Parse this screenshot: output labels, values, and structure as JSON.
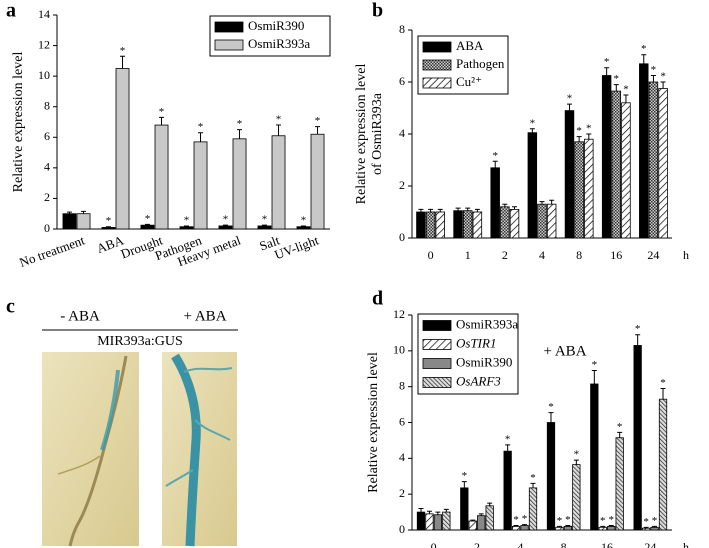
{
  "chart_data": [
    {
      "type": "bar",
      "panel": "a",
      "ylabel": "Relative expression level",
      "categories": [
        "No treatment",
        "ABA",
        "Drought",
        "Pathogen",
        "Heavy metal",
        "Salt",
        "UV-light"
      ],
      "ylim": [
        0,
        14
      ],
      "yticks": [
        0,
        2,
        4,
        6,
        8,
        10,
        12,
        14
      ],
      "legend": "upper right",
      "series": [
        {
          "name": "OsmiR390",
          "color": "#000000",
          "values": [
            1.0,
            0.1,
            0.25,
            0.15,
            0.2,
            0.2,
            0.15
          ],
          "errors": [
            0.1,
            0.05,
            0.05,
            0.05,
            0.05,
            0.05,
            0.05
          ],
          "significance": [
            null,
            "*",
            "*",
            "*",
            "*",
            "*",
            "*"
          ]
        },
        {
          "name": "OsmiR393a",
          "color": "#c8c8c8",
          "values": [
            1.0,
            10.5,
            6.8,
            5.7,
            5.9,
            6.1,
            6.2
          ],
          "errors": [
            0.15,
            0.8,
            0.5,
            0.6,
            0.6,
            0.7,
            0.5
          ],
          "significance": [
            null,
            "*",
            "*",
            "*",
            "*",
            "*",
            "*"
          ]
        }
      ]
    },
    {
      "type": "bar",
      "panel": "b",
      "ylabel": [
        "Relative expression level",
        "of OsmiR393a"
      ],
      "xlabel": "h",
      "categories": [
        "0",
        "1",
        "2",
        "4",
        "8",
        "16",
        "24"
      ],
      "ylim": [
        0,
        8
      ],
      "yticks": [
        0,
        2,
        4,
        6,
        8
      ],
      "legend": "upper left",
      "series": [
        {
          "name": "ABA",
          "color": "#000000",
          "values": [
            1.0,
            1.05,
            2.7,
            4.05,
            4.9,
            6.25,
            6.7
          ],
          "errors": [
            0.1,
            0.1,
            0.25,
            0.15,
            0.25,
            0.3,
            0.35
          ],
          "significance": [
            null,
            null,
            "*",
            "*",
            "*",
            "*",
            "*"
          ]
        },
        {
          "name": "Pathogen",
          "pattern": "checker",
          "values": [
            1.0,
            1.05,
            1.2,
            1.3,
            3.7,
            5.65,
            6.0
          ],
          "errors": [
            0.1,
            0.1,
            0.1,
            0.1,
            0.2,
            0.25,
            0.25
          ],
          "significance": [
            null,
            null,
            null,
            null,
            "*",
            "*",
            "*"
          ]
        },
        {
          "name": "Cu²⁺",
          "pattern": "hatch",
          "values": [
            1.0,
            1.0,
            1.1,
            1.3,
            3.8,
            5.2,
            5.75
          ],
          "errors": [
            0.1,
            0.1,
            0.1,
            0.15,
            0.2,
            0.3,
            0.25
          ],
          "significance": [
            null,
            null,
            null,
            null,
            "*",
            "*",
            "*"
          ]
        }
      ]
    },
    {
      "type": "bar",
      "panel": "d",
      "ylabel": "Relative expression level",
      "xlabel": "h",
      "annotation": "+ ABA",
      "categories": [
        "0",
        "2",
        "4",
        "8",
        "16",
        "24"
      ],
      "ylim": [
        0,
        12
      ],
      "yticks": [
        0,
        2,
        4,
        6,
        8,
        10,
        12
      ],
      "legend": "upper left",
      "series": [
        {
          "name": "OsmiR393a",
          "color": "#000000",
          "values": [
            1.0,
            2.35,
            4.4,
            6.0,
            8.15,
            10.3
          ],
          "errors": [
            0.2,
            0.35,
            0.35,
            0.55,
            0.75,
            0.6
          ],
          "significance": [
            null,
            "*",
            "*",
            "*",
            "*",
            "*"
          ]
        },
        {
          "name": "OsTIR1",
          "pattern": "hatch",
          "italic": true,
          "values": [
            0.9,
            0.5,
            0.2,
            0.15,
            0.15,
            0.1
          ],
          "errors": [
            0.15,
            0.05,
            0.05,
            0.05,
            0.05,
            0.05
          ],
          "significance": [
            null,
            null,
            "*",
            "*",
            "*",
            "*"
          ]
        },
        {
          "name": "OsmiR390",
          "color": "#888888",
          "values": [
            0.85,
            0.8,
            0.25,
            0.2,
            0.2,
            0.15
          ],
          "errors": [
            0.15,
            0.1,
            0.05,
            0.05,
            0.05,
            0.05
          ],
          "significance": [
            null,
            null,
            "*",
            "*",
            "*",
            "*"
          ]
        },
        {
          "name": "OsARF3",
          "pattern": "dense-hatch",
          "italic": true,
          "values": [
            1.0,
            1.35,
            2.35,
            3.65,
            5.15,
            7.3
          ],
          "errors": [
            0.15,
            0.15,
            0.25,
            0.25,
            0.3,
            0.6
          ],
          "significance": [
            null,
            null,
            "*",
            "*",
            "*",
            "*"
          ]
        }
      ]
    }
  ],
  "panel_c": {
    "panel": "c",
    "labels": [
      "- ABA",
      "+ ABA"
    ],
    "construct": "MIR393a:GUS"
  }
}
